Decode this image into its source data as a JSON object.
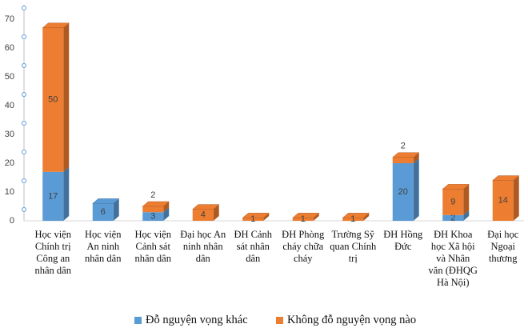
{
  "chart_data": {
    "type": "bar3d-stacked",
    "categories": [
      "Học viện Chính trị Công an nhân dân",
      "Học viện An ninh nhân dân",
      "Học viện Cảnh sát nhân dân",
      "Đại học An ninh nhân dân",
      "ĐH Cảnh sát nhân dân",
      "ĐH Phòng cháy chữa cháy",
      "Trường Sỹ quan Chính trị",
      "ĐH Hồng Đức",
      "ĐH Khoa học Xã hội và Nhân văn (ĐHQG Hà Nội)",
      "Đại học Ngoại thương"
    ],
    "series": [
      {
        "name": "Đỗ nguyện vọng khác",
        "color": "#5b9bd5",
        "side": "#41719c",
        "values": [
          17,
          6,
          3,
          null,
          null,
          null,
          null,
          20,
          2,
          null
        ]
      },
      {
        "name": "Không đỗ nguyện vọng nào",
        "color": "#ed7d31",
        "side": "#ae5a21",
        "values": [
          50,
          null,
          2,
          4,
          1,
          1,
          1,
          2,
          9,
          14
        ]
      }
    ],
    "ylim": [
      0,
      70
    ],
    "yticks": [
      0,
      10,
      20,
      30,
      40,
      50,
      60,
      70
    ]
  }
}
